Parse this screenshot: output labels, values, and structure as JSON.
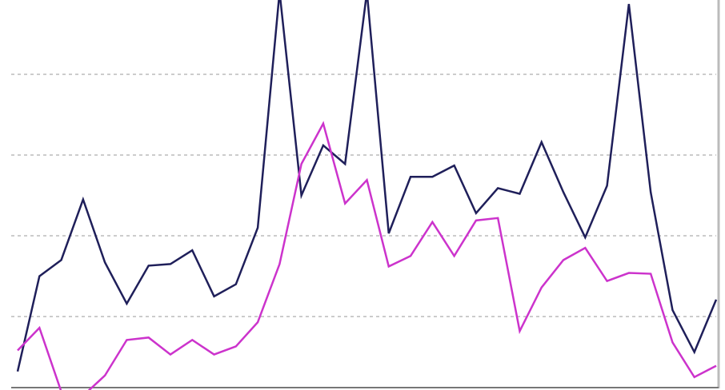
{
  "chart_data": {
    "type": "line",
    "x": [
      0,
      1,
      2,
      3,
      4,
      5,
      6,
      7,
      8,
      9,
      10,
      11,
      12,
      13,
      14,
      15,
      16,
      17,
      18,
      19,
      20,
      21,
      22,
      23,
      24,
      25,
      26,
      27,
      28,
      29,
      30,
      31,
      32
    ],
    "xlim": [
      0,
      32
    ],
    "ylim": [
      0.12,
      4.92
    ],
    "yticks": [
      1,
      2,
      3,
      4
    ],
    "grid": true,
    "series": [
      {
        "color": "#1f1f5a",
        "values": [
          0.32,
          1.5,
          1.7,
          2.45,
          1.67,
          1.16,
          1.63,
          1.65,
          1.82,
          1.25,
          1.4,
          2.1,
          5.02,
          2.5,
          3.12,
          2.89,
          5.02,
          2.03,
          2.73,
          2.73,
          2.87,
          2.28,
          2.59,
          2.52,
          3.16,
          2.54,
          1.98,
          2.62,
          4.87,
          2.54,
          1.08,
          0.56,
          1.21
        ]
      },
      {
        "color": "#cc33cc",
        "values": [
          0.58,
          0.86,
          0.07,
          0.02,
          0.27,
          0.71,
          0.74,
          0.53,
          0.71,
          0.53,
          0.63,
          0.93,
          1.65,
          2.89,
          3.39,
          2.4,
          2.69,
          1.62,
          1.75,
          2.17,
          1.75,
          2.19,
          2.22,
          0.82,
          1.36,
          1.7,
          1.85,
          1.44,
          1.54,
          1.53,
          0.68,
          0.25,
          0.39
        ]
      }
    ]
  }
}
